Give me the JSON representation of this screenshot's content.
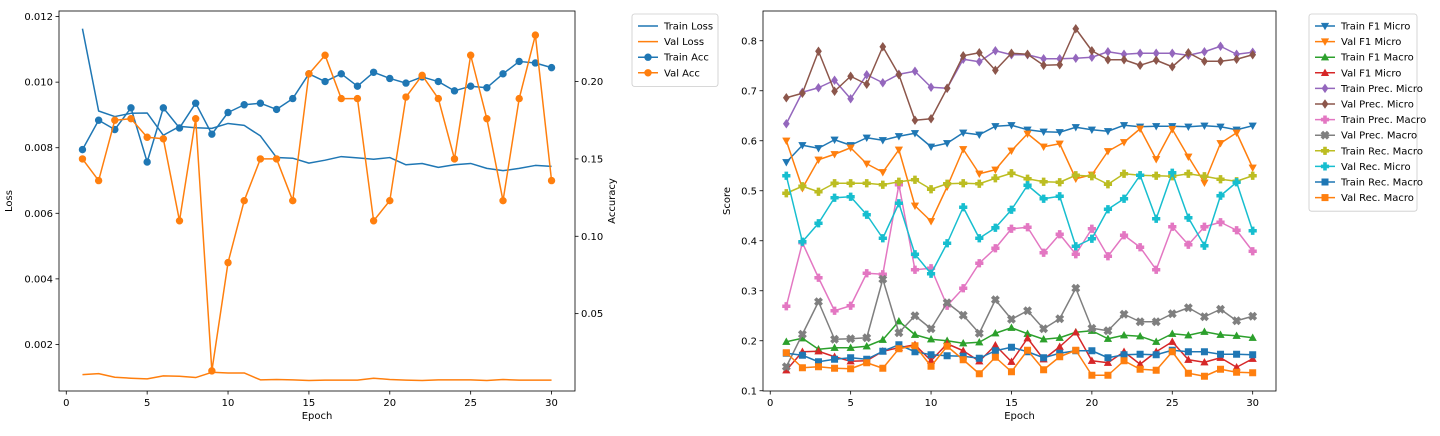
{
  "chart_data": [
    {
      "type": "line",
      "xlabel": "Epoch",
      "ylabel": "Loss",
      "y2label": "Accuracy",
      "xlim": [
        -0.45,
        31.45
      ],
      "ylim": [
        0.00058,
        0.01217
      ],
      "y2lim": [
        0.0,
        0.2456
      ],
      "xticks": [
        0,
        5,
        10,
        15,
        20,
        25,
        30
      ],
      "yticks": [
        0.002,
        0.004,
        0.006,
        0.008,
        0.01,
        0.012
      ],
      "ytick_labels": [
        "0.002",
        "0.004",
        "0.006",
        "0.008",
        "0.010",
        "0.012"
      ],
      "y2ticks": [
        0.05,
        0.1,
        0.15,
        0.2
      ],
      "y2tick_labels": [
        "0.05",
        "0.10",
        "0.15",
        "0.20"
      ],
      "legend_position": "outside-right",
      "x": [
        1,
        2,
        3,
        4,
        5,
        6,
        7,
        8,
        9,
        10,
        11,
        12,
        13,
        14,
        15,
        16,
        17,
        18,
        19,
        20,
        21,
        22,
        23,
        24,
        25,
        26,
        27,
        28,
        29,
        30
      ],
      "series": [
        {
          "name": "Train Loss",
          "axis": "left",
          "marker": "none",
          "color": "#1f77b4",
          "values": [
            0.01163,
            0.00912,
            0.00895,
            0.00905,
            0.00906,
            0.00838,
            0.00865,
            0.00861,
            0.00859,
            0.00874,
            0.00868,
            0.00836,
            0.0077,
            0.00768,
            0.00753,
            0.00762,
            0.00773,
            0.00769,
            0.00765,
            0.0077,
            0.00748,
            0.00752,
            0.0074,
            0.00748,
            0.00752,
            0.00737,
            0.0073,
            0.00737,
            0.00746,
            0.00743
          ]
        },
        {
          "name": "Val Loss",
          "axis": "left",
          "marker": "none",
          "color": "#ff7f0e",
          "values": [
            0.00108,
            0.00111,
            0.001,
            0.00097,
            0.00095,
            0.00104,
            0.00103,
            0.00099,
            0.00115,
            0.00113,
            0.00113,
            0.00092,
            0.00093,
            0.00092,
            0.0009,
            0.00091,
            0.00091,
            0.00091,
            0.00097,
            0.00093,
            0.00091,
            0.0009,
            0.00092,
            0.00092,
            0.00092,
            0.0009,
            0.00093,
            0.00091,
            0.00091,
            0.00091
          ]
        },
        {
          "name": "Train Acc",
          "axis": "right",
          "marker": "circle",
          "color": "#1f77b4",
          "values": [
            0.156,
            0.175,
            0.169,
            0.183,
            0.148,
            0.183,
            0.17,
            0.186,
            0.166,
            0.18,
            0.185,
            0.186,
            0.182,
            0.189,
            0.205,
            0.2,
            0.205,
            0.197,
            0.206,
            0.202,
            0.199,
            0.203,
            0.2,
            0.194,
            0.197,
            0.196,
            0.205,
            0.213,
            0.212,
            0.209
          ]
        },
        {
          "name": "Val Acc",
          "axis": "right",
          "marker": "circle",
          "color": "#ff7f0e",
          "values": [
            0.15,
            0.136,
            0.175,
            0.176,
            0.164,
            0.163,
            0.11,
            0.176,
            0.013,
            0.083,
            0.123,
            0.15,
            0.15,
            0.123,
            0.205,
            0.217,
            0.189,
            0.189,
            0.11,
            0.123,
            0.19,
            0.204,
            0.189,
            0.15,
            0.217,
            0.176,
            0.123,
            0.189,
            0.23,
            0.136
          ]
        }
      ]
    },
    {
      "type": "line",
      "xlabel": "Epoch",
      "ylabel": "Score",
      "xlim": [
        -0.45,
        31.45
      ],
      "ylim": [
        0.0995,
        0.8595
      ],
      "xticks": [
        0,
        5,
        10,
        15,
        20,
        25,
        30
      ],
      "yticks": [
        0.1,
        0.2,
        0.3,
        0.4,
        0.5,
        0.6,
        0.7,
        0.8
      ],
      "ytick_labels": [
        "0.1",
        "0.2",
        "0.3",
        "0.4",
        "0.5",
        "0.6",
        "0.7",
        "0.8"
      ],
      "legend_position": "outside-right",
      "x": [
        1,
        2,
        3,
        4,
        5,
        6,
        7,
        8,
        9,
        10,
        11,
        12,
        13,
        14,
        15,
        16,
        17,
        18,
        19,
        20,
        21,
        22,
        23,
        24,
        25,
        26,
        27,
        28,
        29,
        30
      ],
      "series": [
        {
          "name": "Train F1 Micro",
          "marker": "tri-down",
          "color": "#1f77b4",
          "values": [
            0.557,
            0.591,
            0.585,
            0.602,
            0.591,
            0.606,
            0.601,
            0.609,
            0.615,
            0.588,
            0.595,
            0.616,
            0.612,
            0.629,
            0.631,
            0.622,
            0.618,
            0.617,
            0.627,
            0.622,
            0.619,
            0.631,
            0.628,
            0.629,
            0.629,
            0.628,
            0.63,
            0.628,
            0.622,
            0.63
          ]
        },
        {
          "name": "Val F1 Micro",
          "marker": "tri-down",
          "color": "#ff7f0e",
          "values": [
            0.6,
            0.505,
            0.562,
            0.573,
            0.586,
            0.554,
            0.537,
            0.582,
            0.47,
            0.439,
            0.508,
            0.583,
            0.534,
            0.542,
            0.58,
            0.614,
            0.588,
            0.594,
            0.524,
            0.532,
            0.579,
            0.597,
            0.624,
            0.563,
            0.623,
            0.568,
            0.516,
            0.595,
            0.616,
            0.546
          ]
        },
        {
          "name": "Train F1 Macro",
          "marker": "tri-up",
          "color": "#2ca02c",
          "values": [
            0.198,
            0.205,
            0.183,
            0.186,
            0.186,
            0.189,
            0.202,
            0.239,
            0.212,
            0.203,
            0.2,
            0.195,
            0.197,
            0.215,
            0.226,
            0.214,
            0.203,
            0.206,
            0.217,
            0.22,
            0.204,
            0.211,
            0.209,
            0.198,
            0.214,
            0.211,
            0.218,
            0.212,
            0.21,
            0.206
          ]
        },
        {
          "name": "Val F1 Micro",
          "marker": "tri-up",
          "color": "#d62728",
          "values": [
            0.141,
            0.178,
            0.179,
            0.168,
            0.159,
            0.16,
            0.179,
            0.186,
            0.192,
            0.16,
            0.194,
            0.18,
            0.159,
            0.191,
            0.158,
            0.205,
            0.163,
            0.188,
            0.217,
            0.16,
            0.156,
            0.178,
            0.153,
            0.178,
            0.198,
            0.162,
            0.157,
            0.166,
            0.147,
            0.164
          ]
        },
        {
          "name": "Train Prec. Micro",
          "marker": "diamond",
          "color": "#9467bd",
          "values": [
            0.634,
            0.697,
            0.706,
            0.721,
            0.684,
            0.732,
            0.716,
            0.733,
            0.739,
            0.707,
            0.705,
            0.763,
            0.758,
            0.78,
            0.772,
            0.772,
            0.764,
            0.764,
            0.765,
            0.767,
            0.778,
            0.773,
            0.775,
            0.775,
            0.775,
            0.771,
            0.778,
            0.789,
            0.773,
            0.777
          ]
        },
        {
          "name": "Val Prec. Micro",
          "marker": "diamond",
          "color": "#8c564b",
          "values": [
            0.686,
            0.695,
            0.779,
            0.699,
            0.729,
            0.713,
            0.788,
            0.732,
            0.641,
            0.644,
            0.705,
            0.77,
            0.776,
            0.741,
            0.775,
            0.773,
            0.751,
            0.752,
            0.824,
            0.78,
            0.762,
            0.762,
            0.751,
            0.761,
            0.748,
            0.776,
            0.759,
            0.759,
            0.763,
            0.772
          ]
        },
        {
          "name": "Train Prec. Macro",
          "marker": "plus-filled",
          "color": "#e377c2",
          "values": [
            0.269,
            0.396,
            0.326,
            0.26,
            0.27,
            0.335,
            0.333,
            0.512,
            0.342,
            0.345,
            0.27,
            0.305,
            0.355,
            0.385,
            0.424,
            0.427,
            0.376,
            0.413,
            0.373,
            0.424,
            0.369,
            0.411,
            0.387,
            0.342,
            0.428,
            0.392,
            0.428,
            0.437,
            0.421,
            0.379
          ]
        },
        {
          "name": "Val Prec. Macro",
          "marker": "x-filled",
          "color": "#7f7f7f",
          "values": [
            0.148,
            0.213,
            0.278,
            0.203,
            0.204,
            0.206,
            0.323,
            0.216,
            0.25,
            0.224,
            0.276,
            0.251,
            0.215,
            0.282,
            0.243,
            0.26,
            0.224,
            0.244,
            0.305,
            0.225,
            0.22,
            0.253,
            0.238,
            0.238,
            0.254,
            0.266,
            0.248,
            0.263,
            0.24,
            0.249
          ]
        },
        {
          "name": "Train Rec. Macro",
          "marker": "plus-filled",
          "color": "#bcbd22",
          "values": [
            0.495,
            0.509,
            0.498,
            0.515,
            0.515,
            0.515,
            0.512,
            0.518,
            0.522,
            0.503,
            0.514,
            0.515,
            0.514,
            0.525,
            0.535,
            0.524,
            0.518,
            0.517,
            0.531,
            0.529,
            0.513,
            0.534,
            0.531,
            0.53,
            0.529,
            0.534,
            0.529,
            0.523,
            0.519,
            0.53
          ]
        },
        {
          "name": "Val Rec. Micro",
          "marker": "plus-filled",
          "color": "#17becf",
          "values": [
            0.53,
            0.398,
            0.435,
            0.486,
            0.488,
            0.452,
            0.405,
            0.475,
            0.373,
            0.334,
            0.395,
            0.467,
            0.405,
            0.426,
            0.462,
            0.511,
            0.484,
            0.489,
            0.389,
            0.404,
            0.463,
            0.484,
            0.531,
            0.444,
            0.536,
            0.446,
            0.39,
            0.49,
            0.517,
            0.42
          ]
        },
        {
          "name": "Train Rec. Macro",
          "marker": "square",
          "color": "#1f77b4",
          "values": [
            0.175,
            0.171,
            0.158,
            0.163,
            0.166,
            0.163,
            0.179,
            0.192,
            0.178,
            0.172,
            0.17,
            0.169,
            0.165,
            0.18,
            0.187,
            0.178,
            0.166,
            0.175,
            0.18,
            0.18,
            0.166,
            0.172,
            0.173,
            0.172,
            0.181,
            0.178,
            0.178,
            0.173,
            0.173,
            0.172
          ]
        },
        {
          "name": "Val Rec. Macro",
          "marker": "square",
          "color": "#ff7f0e",
          "values": [
            0.176,
            0.146,
            0.148,
            0.145,
            0.144,
            0.156,
            0.145,
            0.184,
            0.19,
            0.149,
            0.189,
            0.162,
            0.134,
            0.167,
            0.138,
            0.181,
            0.142,
            0.168,
            0.181,
            0.131,
            0.131,
            0.16,
            0.143,
            0.141,
            0.178,
            0.135,
            0.129,
            0.143,
            0.137,
            0.136
          ]
        }
      ]
    }
  ]
}
